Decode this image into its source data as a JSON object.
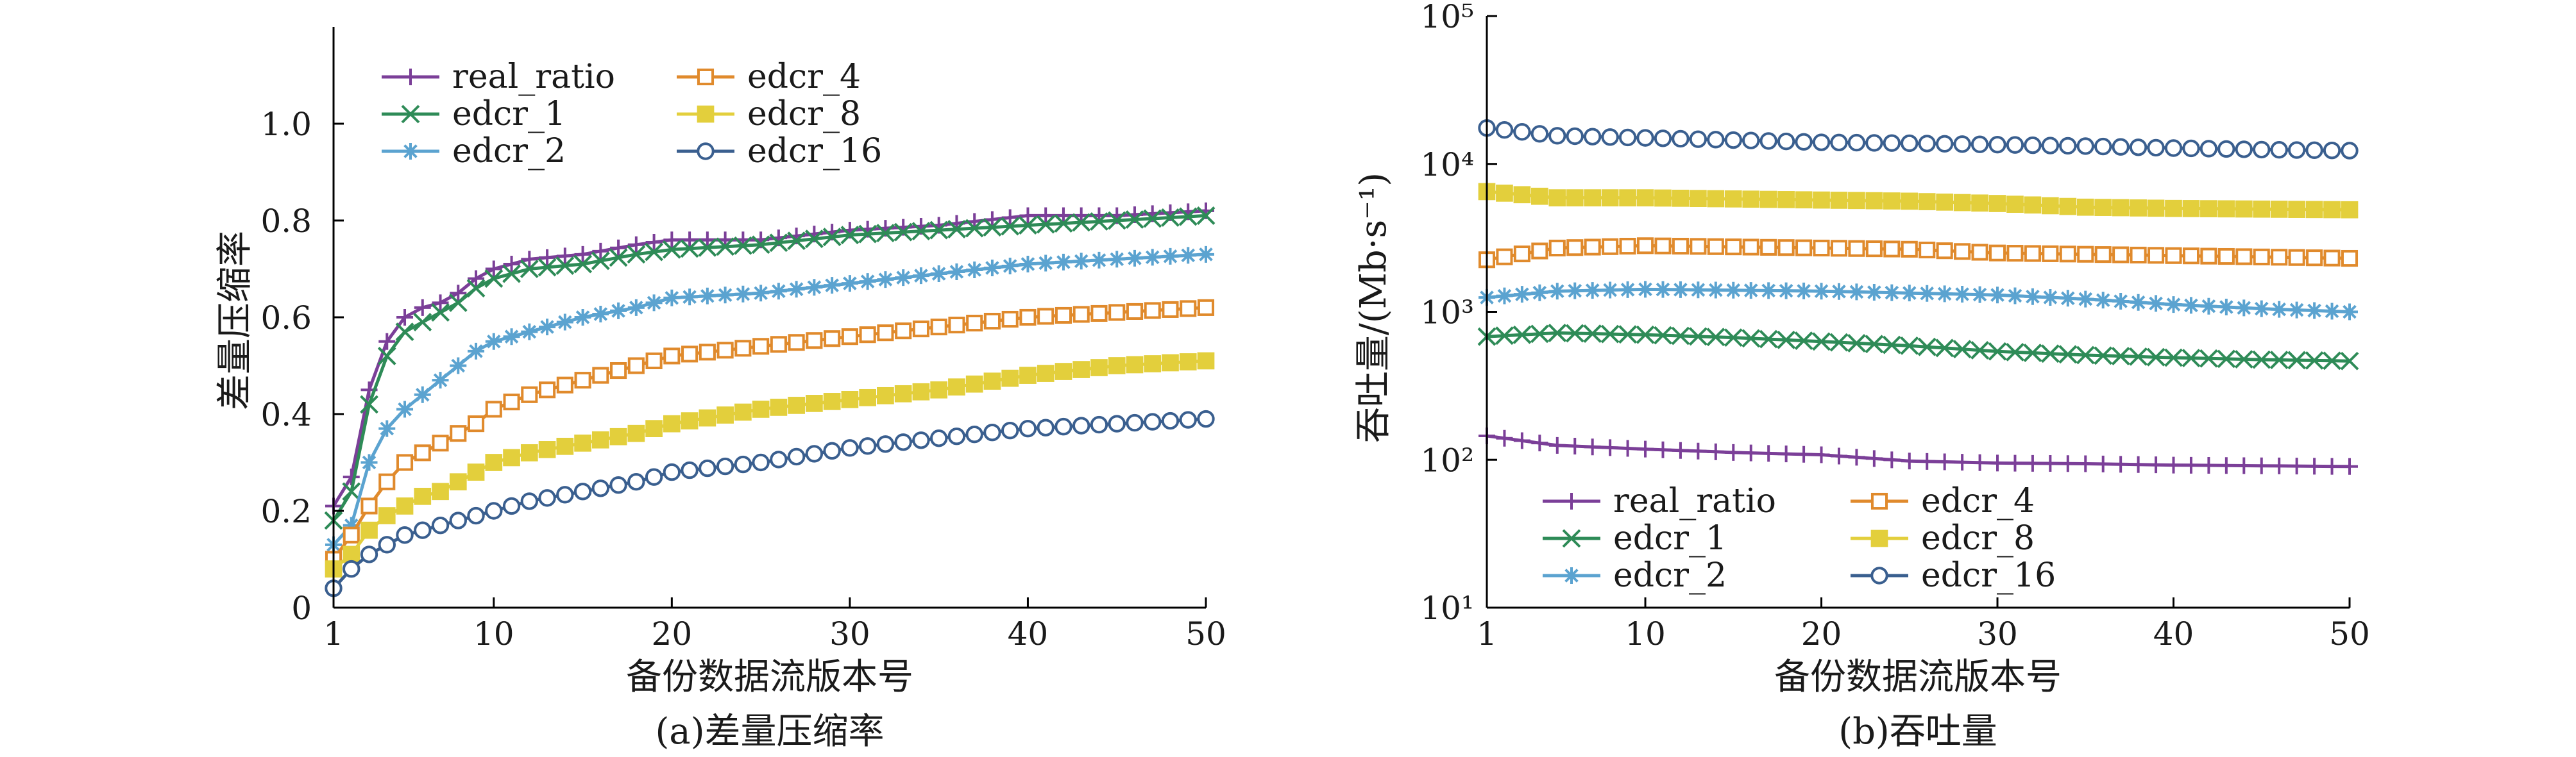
{
  "chart_data": [
    {
      "type": "line",
      "caption": "(a)差量压缩率",
      "xlabel": "备份数据流版本号",
      "ylabel": "差量压缩率",
      "x_ticks": [
        "1",
        "10",
        "20",
        "30",
        "40",
        "50"
      ],
      "y_ticks": [
        "0",
        "0.2",
        "0.4",
        "0.6",
        "0.8",
        "1.0"
      ],
      "xlim": [
        1,
        50
      ],
      "ylim": [
        0,
        1.2
      ],
      "legend_position": "top-left",
      "grid": false,
      "x_anchors": [
        1,
        2,
        3,
        4,
        5,
        6,
        7,
        8,
        9,
        10,
        12,
        15,
        18,
        20,
        25,
        30,
        35,
        40,
        45,
        50
      ],
      "series": [
        {
          "name": "real_ratio",
          "color": "#7b3f98",
          "marker": "plus",
          "values": [
            0.21,
            0.27,
            0.45,
            0.55,
            0.6,
            0.62,
            0.63,
            0.65,
            0.68,
            0.7,
            0.72,
            0.73,
            0.75,
            0.76,
            0.76,
            0.78,
            0.79,
            0.81,
            0.81,
            0.82
          ]
        },
        {
          "name": "edcr_1",
          "color": "#2e8b57",
          "marker": "x",
          "values": [
            0.18,
            0.24,
            0.42,
            0.52,
            0.57,
            0.59,
            0.61,
            0.63,
            0.66,
            0.68,
            0.7,
            0.71,
            0.73,
            0.74,
            0.75,
            0.77,
            0.78,
            0.79,
            0.8,
            0.81
          ]
        },
        {
          "name": "edcr_2",
          "color": "#5ba3d0",
          "marker": "star",
          "values": [
            0.13,
            0.17,
            0.3,
            0.37,
            0.41,
            0.44,
            0.47,
            0.5,
            0.53,
            0.55,
            0.57,
            0.6,
            0.62,
            0.64,
            0.65,
            0.67,
            0.69,
            0.71,
            0.72,
            0.73
          ]
        },
        {
          "name": "edcr_4",
          "color": "#e08a2c",
          "marker": "square-open",
          "values": [
            0.1,
            0.15,
            0.21,
            0.26,
            0.3,
            0.32,
            0.34,
            0.36,
            0.38,
            0.41,
            0.44,
            0.47,
            0.5,
            0.52,
            0.54,
            0.56,
            0.58,
            0.6,
            0.61,
            0.62
          ]
        },
        {
          "name": "edcr_8",
          "color": "#e3cf3c",
          "marker": "square-filled",
          "values": [
            0.08,
            0.11,
            0.16,
            0.19,
            0.21,
            0.23,
            0.24,
            0.26,
            0.28,
            0.3,
            0.32,
            0.34,
            0.36,
            0.38,
            0.41,
            0.43,
            0.45,
            0.48,
            0.5,
            0.51
          ]
        },
        {
          "name": "edcr_16",
          "color": "#3a5f8f",
          "marker": "circle-open",
          "values": [
            0.04,
            0.08,
            0.11,
            0.13,
            0.15,
            0.16,
            0.17,
            0.18,
            0.19,
            0.2,
            0.22,
            0.24,
            0.26,
            0.28,
            0.3,
            0.33,
            0.35,
            0.37,
            0.38,
            0.39
          ]
        }
      ]
    },
    {
      "type": "line",
      "caption": "(b)吞吐量",
      "xlabel": "备份数据流版本号",
      "ylabel": "吞吐量/(Mb·s⁻¹)",
      "x_ticks": [
        "1",
        "10",
        "20",
        "30",
        "40",
        "50"
      ],
      "y_ticks": [
        "10¹",
        "10²",
        "10³",
        "10⁴",
        "10⁵"
      ],
      "xlim": [
        1,
        50
      ],
      "ylim": [
        10,
        100000
      ],
      "y_scale": "log",
      "legend_position": "bottom-left",
      "grid": false,
      "x_anchors": [
        1,
        5,
        10,
        15,
        20,
        25,
        30,
        35,
        40,
        45,
        50
      ],
      "series": [
        {
          "name": "real_ratio",
          "color": "#7b3f98",
          "marker": "plus",
          "values": [
            145,
            125,
            118,
            112,
            108,
            98,
            95,
            94,
            92,
            91,
            90
          ]
        },
        {
          "name": "edcr_1",
          "color": "#2e8b57",
          "marker": "x",
          "values": [
            680,
            720,
            700,
            670,
            630,
            590,
            540,
            510,
            490,
            475,
            465
          ]
        },
        {
          "name": "edcr_2",
          "color": "#5ba3d0",
          "marker": "star",
          "values": [
            1250,
            1380,
            1420,
            1400,
            1380,
            1340,
            1300,
            1220,
            1120,
            1050,
            1000
          ]
        },
        {
          "name": "edcr_4",
          "color": "#e08a2c",
          "marker": "square-open",
          "values": [
            2250,
            2700,
            2800,
            2750,
            2700,
            2650,
            2500,
            2450,
            2400,
            2350,
            2300
          ]
        },
        {
          "name": "edcr_8",
          "color": "#e3cf3c",
          "marker": "square-filled",
          "values": [
            6500,
            5900,
            5900,
            5800,
            5700,
            5600,
            5400,
            5100,
            5000,
            4950,
            4900
          ]
        },
        {
          "name": "edcr_16",
          "color": "#3a5f8f",
          "marker": "circle-open",
          "values": [
            17500,
            15500,
            15000,
            14500,
            14000,
            13800,
            13500,
            13200,
            12800,
            12500,
            12300
          ]
        }
      ]
    }
  ]
}
